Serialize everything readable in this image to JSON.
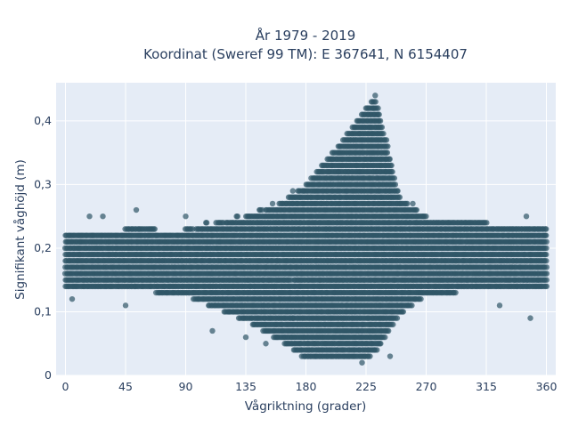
{
  "chart_data": {
    "type": "scatter",
    "title_line1": "År 1979 - 2019",
    "title_line2": "Koordinat (Sweref 99 TM): E 367641, N 6154407",
    "xlabel": "Vågriktning (grader)",
    "ylabel": "Signifikant våghöjd (m)",
    "xlim": [
      -7,
      367
    ],
    "ylim": [
      0,
      0.46
    ],
    "x_ticks": [
      0,
      45,
      90,
      135,
      180,
      225,
      270,
      315,
      360
    ],
    "x_tick_labels": [
      "0",
      "45",
      "90",
      "135",
      "180",
      "225",
      "270",
      "315",
      "360"
    ],
    "y_ticks": [
      0,
      0.1,
      0.2,
      0.3,
      0.4
    ],
    "y_tick_labels": [
      "0",
      "0,1",
      "0,2",
      "0,3",
      "0,4"
    ],
    "grid": true,
    "legend": "none",
    "background": "#e5ecf6",
    "marker_color": "#2f5566",
    "series": [
      {
        "points_note_envelope": [
          {
            "x": 0,
            "y_min": 0.14,
            "y_max": 0.22
          },
          {
            "x": 45,
            "y_min": 0.14,
            "y_max": 0.23
          },
          {
            "x": 90,
            "y_min": 0.13,
            "y_max": 0.23
          },
          {
            "x": 135,
            "y_min": 0.09,
            "y_max": 0.25
          },
          {
            "x": 160,
            "y_min": 0.06,
            "y_max": 0.27
          },
          {
            "x": 180,
            "y_min": 0.03,
            "y_max": 0.3
          },
          {
            "x": 200,
            "y_min": 0.03,
            "y_max": 0.35
          },
          {
            "x": 225,
            "y_min": 0.03,
            "y_max": 0.42
          },
          {
            "x": 232,
            "y_min": 0.04,
            "y_max": 0.44
          },
          {
            "x": 250,
            "y_min": 0.1,
            "y_max": 0.28
          },
          {
            "x": 270,
            "y_min": 0.13,
            "y_max": 0.25
          },
          {
            "x": 315,
            "y_min": 0.14,
            "y_max": 0.24
          },
          {
            "x": 360,
            "y_min": 0.14,
            "y_max": 0.23
          }
        ],
        "outliers": [
          {
            "x": 5,
            "y": 0.12
          },
          {
            "x": 18,
            "y": 0.25
          },
          {
            "x": 28,
            "y": 0.25
          },
          {
            "x": 45,
            "y": 0.11
          },
          {
            "x": 53,
            "y": 0.26
          },
          {
            "x": 90,
            "y": 0.25
          },
          {
            "x": 110,
            "y": 0.07
          },
          {
            "x": 135,
            "y": 0.06
          },
          {
            "x": 150,
            "y": 0.05
          },
          {
            "x": 345,
            "y": 0.25
          },
          {
            "x": 348,
            "y": 0.09
          },
          {
            "x": 325,
            "y": 0.11
          },
          {
            "x": 222,
            "y": 0.02
          },
          {
            "x": 243,
            "y": 0.03
          }
        ]
      }
    ]
  }
}
